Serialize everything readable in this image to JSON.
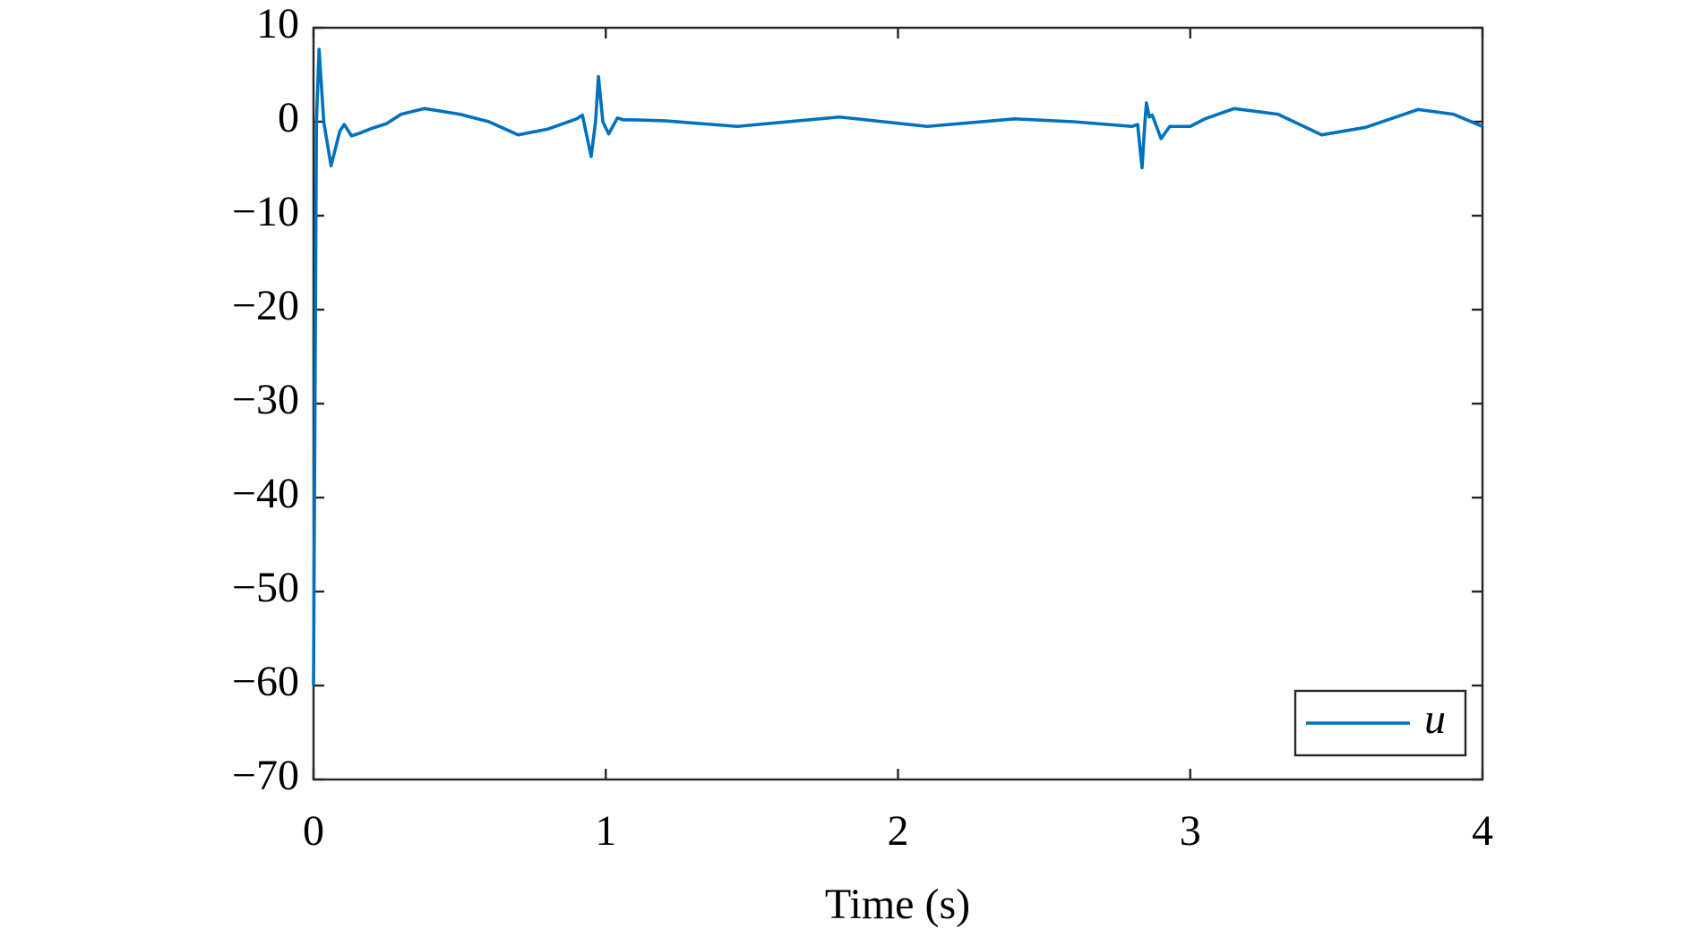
{
  "chart_data": {
    "type": "line",
    "xlabel": "Time (s)",
    "x": [
      0,
      0.01,
      0.019,
      0.035,
      0.06,
      0.09,
      0.105,
      0.13,
      0.16,
      0.2,
      0.25,
      0.3,
      0.38,
      0.5,
      0.6,
      0.7,
      0.8,
      0.9,
      0.92,
      0.95,
      0.965,
      0.975,
      0.99,
      1.01,
      1.04,
      1.06,
      1.1,
      1.2,
      1.45,
      1.8,
      2.1,
      2.4,
      2.6,
      2.8,
      2.82,
      2.835,
      2.845,
      2.85,
      2.86,
      2.87,
      2.9,
      2.93,
      3.0,
      3.05,
      3.15,
      3.3,
      3.45,
      3.6,
      3.78,
      3.9,
      4
    ],
    "series": [
      {
        "name": "u",
        "color": "#0072bd",
        "values": [
          -60,
          0,
          7.7,
          0,
          -4.7,
          -1,
          -0.3,
          -1.5,
          -1.2,
          -0.7,
          -0.2,
          0.8,
          1.4,
          0.8,
          0,
          -1.4,
          -0.8,
          0.3,
          0.7,
          -3.7,
          0,
          4.8,
          0,
          -1.3,
          0.4,
          0.2,
          0.2,
          0.1,
          -0.5,
          0.5,
          -0.5,
          0.3,
          0,
          -0.5,
          -0.3,
          -4.9,
          0,
          2,
          0.5,
          0.7,
          -1.8,
          -0.5,
          -0.5,
          0.3,
          1.4,
          0.8,
          -1.4,
          -0.6,
          1.3,
          0.8,
          -0.5
        ]
      }
    ],
    "xlim": [
      0,
      4
    ],
    "xticks": [
      0,
      1,
      2,
      3,
      4
    ],
    "ylim": [
      -70,
      10
    ],
    "yticks": [
      {
        "value": -70,
        "label": "−70"
      },
      {
        "value": -60,
        "label": "−60"
      },
      {
        "value": -50,
        "label": "−50"
      },
      {
        "value": -40,
        "label": "−40"
      },
      {
        "value": -30,
        "label": "−30"
      },
      {
        "value": -20,
        "label": "−20"
      },
      {
        "value": -10,
        "label": "−10"
      },
      0,
      10
    ],
    "legend": "lower right"
  }
}
